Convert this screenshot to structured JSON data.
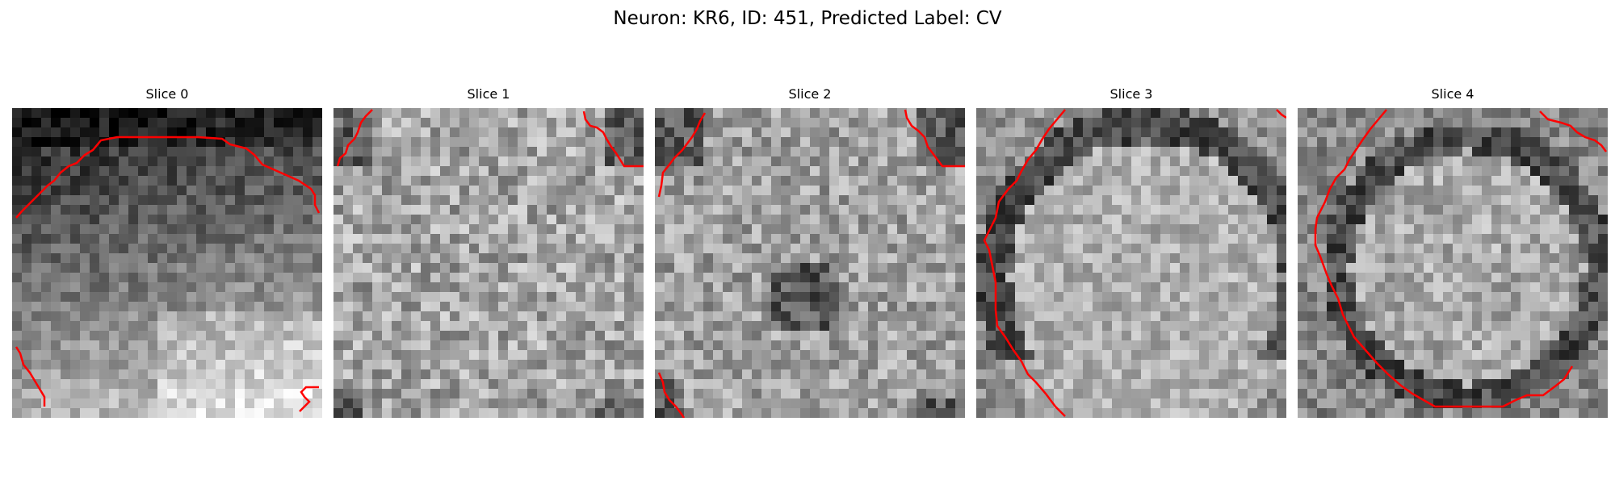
{
  "figure": {
    "title": "Neuron: KR6, ID: 451, Predicted Label: CV"
  },
  "panels": [
    {
      "title": "Slice 0"
    },
    {
      "title": "Slice 1"
    },
    {
      "title": "Slice 2"
    },
    {
      "title": "Slice 3"
    },
    {
      "title": "Slice 4"
    }
  ],
  "colors": {
    "contour": "#ff0000",
    "colormap": "gray"
  }
}
